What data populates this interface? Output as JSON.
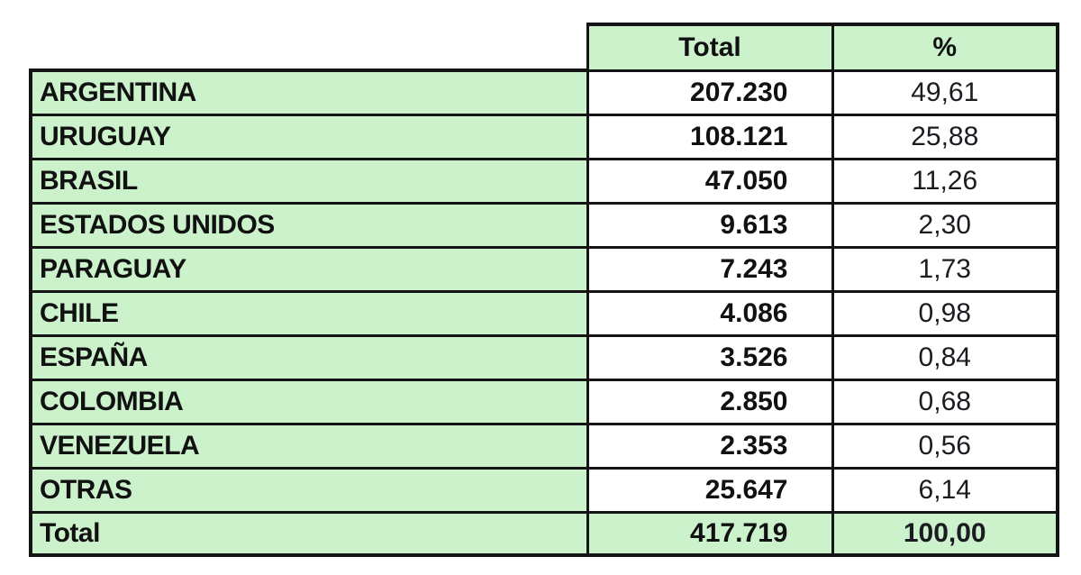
{
  "table": {
    "header": {
      "total_label": "Total",
      "percent_label": "%"
    },
    "rows": [
      {
        "country": "ARGENTINA",
        "total": "207.230",
        "percent": "49,61"
      },
      {
        "country": "URUGUAY",
        "total": "108.121",
        "percent": "25,88"
      },
      {
        "country": "BRASIL",
        "total": "47.050",
        "percent": "11,26"
      },
      {
        "country": "ESTADOS UNIDOS",
        "total": "9.613",
        "percent": "2,30"
      },
      {
        "country": "PARAGUAY",
        "total": "7.243",
        "percent": "1,73"
      },
      {
        "country": "CHILE",
        "total": "4.086",
        "percent": "0,98"
      },
      {
        "country": "ESPAÑA",
        "total": "3.526",
        "percent": "0,84"
      },
      {
        "country": "COLOMBIA",
        "total": "2.850",
        "percent": "0,68"
      },
      {
        "country": "VENEZUELA",
        "total": "2.353",
        "percent": "0,56"
      },
      {
        "country": "OTRAS",
        "total": "25.647",
        "percent": "6,14"
      }
    ],
    "footer": {
      "country": "Total",
      "total": "417.719",
      "percent": "100,00"
    },
    "colors": {
      "cell_green": "#ccf2cc",
      "border": "#141414",
      "text": "#111111",
      "background": "#ffffff"
    }
  },
  "chart_data": {
    "type": "table",
    "title": "",
    "columns": [
      "",
      "Total",
      "%"
    ],
    "categories": [
      "ARGENTINA",
      "URUGUAY",
      "BRASIL",
      "ESTADOS UNIDOS",
      "PARAGUAY",
      "CHILE",
      "ESPAÑA",
      "COLOMBIA",
      "VENEZUELA",
      "OTRAS"
    ],
    "series": [
      {
        "name": "Total",
        "values": [
          207230,
          108121,
          47050,
          9613,
          7243,
          4086,
          3526,
          2850,
          2353,
          25647
        ]
      },
      {
        "name": "%",
        "values": [
          49.61,
          25.88,
          11.26,
          2.3,
          1.73,
          0.98,
          0.84,
          0.68,
          0.56,
          6.14
        ]
      }
    ],
    "totals": {
      "label": "Total",
      "total": 417719,
      "percent": 100.0
    }
  }
}
